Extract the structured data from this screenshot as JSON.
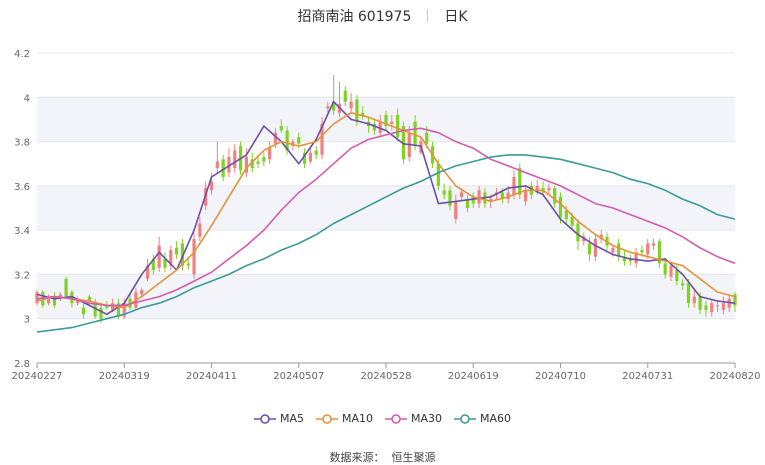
{
  "header": {
    "title": "招商南油 601975",
    "period": "日K"
  },
  "source": {
    "label": "数据来源：",
    "value": "恒生聚源"
  },
  "colors": {
    "up": "#f08080",
    "down": "#7ed321",
    "ma5": "#6c4fa8",
    "ma10": "#e8913a",
    "ma30": "#d45bb0",
    "ma60": "#3c9a9a",
    "band": "#f3f4f9",
    "grid": "#e6e6e6"
  },
  "chart_data": {
    "type": "candlestick",
    "ylim": [
      2.8,
      4.2
    ],
    "yticks": [
      2.8,
      3,
      3.2,
      3.4,
      3.6,
      3.8,
      4,
      4.2
    ],
    "xtick_labels": [
      "20240227",
      "20240319",
      "20240411",
      "20240507",
      "20240528",
      "20240619",
      "20240710",
      "20240731",
      "20240820"
    ],
    "xtick_index": [
      0,
      15,
      30,
      45,
      60,
      75,
      90,
      105,
      120
    ],
    "n_days": 121,
    "legend": [
      "MA5",
      "MA10",
      "MA30",
      "MA60"
    ],
    "ma_series": [
      {
        "name": "MA5",
        "color_key": "ma5",
        "x": [
          0,
          3,
          6,
          9,
          12,
          15,
          18,
          21,
          24,
          27,
          30,
          33,
          36,
          39,
          42,
          45,
          48,
          51,
          54,
          57,
          60,
          63,
          66,
          69,
          72,
          75,
          78,
          81,
          84,
          87,
          90,
          93,
          96,
          99,
          102,
          105,
          108,
          111,
          114,
          117,
          120
        ],
        "y": [
          3.11,
          3.09,
          3.1,
          3.06,
          3.02,
          3.07,
          3.2,
          3.3,
          3.22,
          3.4,
          3.64,
          3.69,
          3.74,
          3.87,
          3.8,
          3.7,
          3.81,
          3.98,
          3.9,
          3.88,
          3.85,
          3.79,
          3.78,
          3.52,
          3.53,
          3.54,
          3.55,
          3.59,
          3.6,
          3.56,
          3.45,
          3.38,
          3.33,
          3.29,
          3.27,
          3.26,
          3.27,
          3.2,
          3.1,
          3.08,
          3.07
        ]
      },
      {
        "name": "MA10",
        "color_key": "ma10",
        "x": [
          0,
          3,
          6,
          9,
          12,
          15,
          18,
          21,
          24,
          27,
          30,
          33,
          36,
          39,
          42,
          45,
          48,
          51,
          54,
          57,
          60,
          63,
          66,
          69,
          72,
          75,
          78,
          81,
          84,
          87,
          90,
          93,
          96,
          99,
          102,
          105,
          108,
          111,
          114,
          117,
          120
        ],
        "y": [
          3.08,
          3.1,
          3.09,
          3.08,
          3.06,
          3.05,
          3.1,
          3.16,
          3.22,
          3.3,
          3.42,
          3.55,
          3.68,
          3.76,
          3.8,
          3.78,
          3.8,
          3.88,
          3.93,
          3.91,
          3.88,
          3.85,
          3.82,
          3.7,
          3.6,
          3.55,
          3.53,
          3.55,
          3.58,
          3.58,
          3.52,
          3.44,
          3.38,
          3.33,
          3.3,
          3.28,
          3.26,
          3.24,
          3.18,
          3.12,
          3.1
        ]
      },
      {
        "name": "MA30",
        "color_key": "ma30",
        "x": [
          0,
          3,
          6,
          9,
          12,
          15,
          18,
          21,
          24,
          27,
          30,
          33,
          36,
          39,
          42,
          45,
          48,
          51,
          54,
          57,
          60,
          63,
          66,
          69,
          72,
          75,
          78,
          81,
          84,
          87,
          90,
          93,
          96,
          99,
          102,
          105,
          108,
          111,
          114,
          117,
          120
        ],
        "y": [
          3.09,
          3.1,
          3.09,
          3.07,
          3.06,
          3.06,
          3.08,
          3.1,
          3.13,
          3.17,
          3.21,
          3.27,
          3.33,
          3.4,
          3.49,
          3.57,
          3.63,
          3.7,
          3.77,
          3.81,
          3.83,
          3.85,
          3.86,
          3.84,
          3.8,
          3.77,
          3.72,
          3.69,
          3.66,
          3.63,
          3.6,
          3.56,
          3.52,
          3.5,
          3.47,
          3.44,
          3.41,
          3.37,
          3.32,
          3.28,
          3.25
        ]
      },
      {
        "name": "MA60",
        "color_key": "ma60",
        "x": [
          0,
          3,
          6,
          9,
          12,
          15,
          18,
          21,
          24,
          27,
          30,
          33,
          36,
          39,
          42,
          45,
          48,
          51,
          54,
          57,
          60,
          63,
          66,
          69,
          72,
          75,
          78,
          81,
          84,
          87,
          90,
          93,
          96,
          99,
          102,
          105,
          108,
          111,
          114,
          117,
          120
        ],
        "y": [
          2.94,
          2.95,
          2.96,
          2.98,
          3.0,
          3.02,
          3.05,
          3.07,
          3.1,
          3.14,
          3.17,
          3.2,
          3.24,
          3.27,
          3.31,
          3.34,
          3.38,
          3.43,
          3.47,
          3.51,
          3.55,
          3.59,
          3.62,
          3.66,
          3.69,
          3.71,
          3.73,
          3.74,
          3.74,
          3.73,
          3.72,
          3.7,
          3.68,
          3.66,
          3.63,
          3.61,
          3.58,
          3.54,
          3.51,
          3.47,
          3.45
        ]
      }
    ],
    "candles": {
      "open": [
        3.07,
        3.12,
        3.07,
        3.1,
        3.09,
        3.18,
        3.12,
        3.07,
        3.05,
        3.1,
        3.07,
        3.05,
        3.06,
        3.04,
        3.07,
        3.01,
        3.09,
        3.05,
        3.11,
        3.18,
        3.27,
        3.23,
        3.27,
        3.24,
        3.32,
        3.34,
        3.25,
        3.2,
        3.37,
        3.51,
        3.58,
        3.68,
        3.72,
        3.66,
        3.68,
        3.78,
        3.66,
        3.72,
        3.71,
        3.73,
        3.72,
        3.79,
        3.87,
        3.85,
        3.78,
        3.82,
        3.75,
        3.71,
        3.76,
        3.74,
        3.95,
        3.98,
        3.93,
        4.03,
        3.95,
        3.99,
        3.93,
        3.89,
        3.88,
        3.84,
        3.92,
        3.88,
        3.92,
        3.87,
        3.73,
        3.89,
        3.75,
        3.84,
        3.78,
        3.7,
        3.58,
        3.58,
        3.45,
        3.55,
        3.54,
        3.55,
        3.52,
        3.57,
        3.53,
        3.56,
        3.57,
        3.54,
        3.56,
        3.68,
        3.53,
        3.6,
        3.58,
        3.59,
        3.58,
        3.59,
        3.55,
        3.49,
        3.46,
        3.43,
        3.35,
        3.34,
        3.28,
        3.36,
        3.37,
        3.3,
        3.34,
        3.28,
        3.27,
        3.25,
        3.31,
        3.29,
        3.33,
        3.35,
        3.25,
        3.19,
        3.22,
        3.16,
        3.16,
        3.07,
        3.1,
        3.06,
        3.03,
        3.06,
        3.04,
        3.05,
        3.11
      ],
      "close": [
        3.12,
        3.06,
        3.09,
        3.06,
        3.11,
        3.1,
        3.07,
        3.09,
        3.02,
        3.08,
        3.01,
        3.0,
        3.05,
        3.07,
        3.01,
        3.07,
        3.05,
        3.12,
        3.13,
        3.24,
        3.22,
        3.33,
        3.23,
        3.31,
        3.29,
        3.24,
        3.24,
        3.36,
        3.43,
        3.59,
        3.62,
        3.71,
        3.64,
        3.73,
        3.76,
        3.67,
        3.73,
        3.68,
        3.7,
        3.71,
        3.77,
        3.84,
        3.85,
        3.76,
        3.8,
        3.79,
        3.7,
        3.75,
        3.74,
        3.88,
        3.96,
        3.94,
        3.97,
        3.98,
        3.98,
        3.89,
        3.92,
        3.87,
        3.85,
        3.89,
        3.87,
        3.89,
        3.82,
        3.72,
        3.84,
        3.78,
        3.8,
        3.79,
        3.7,
        3.6,
        3.56,
        3.51,
        3.53,
        3.57,
        3.5,
        3.52,
        3.58,
        3.52,
        3.54,
        3.57,
        3.54,
        3.57,
        3.64,
        3.56,
        3.58,
        3.56,
        3.6,
        3.57,
        3.59,
        3.52,
        3.46,
        3.45,
        3.42,
        3.35,
        3.37,
        3.29,
        3.36,
        3.38,
        3.33,
        3.32,
        3.28,
        3.26,
        3.26,
        3.3,
        3.3,
        3.34,
        3.34,
        3.25,
        3.2,
        3.24,
        3.17,
        3.15,
        3.07,
        3.1,
        3.04,
        3.04,
        3.07,
        3.06,
        3.07,
        3.09,
        3.06
      ],
      "high": [
        3.13,
        3.13,
        3.11,
        3.12,
        3.12,
        3.19,
        3.13,
        3.1,
        3.07,
        3.11,
        3.09,
        3.06,
        3.08,
        3.09,
        3.09,
        3.09,
        3.11,
        3.14,
        3.14,
        3.27,
        3.29,
        3.37,
        3.3,
        3.33,
        3.35,
        3.36,
        3.28,
        3.39,
        3.46,
        3.62,
        3.66,
        3.8,
        3.74,
        3.77,
        3.79,
        3.8,
        3.77,
        3.75,
        3.74,
        3.75,
        3.8,
        3.86,
        3.9,
        3.87,
        3.81,
        3.84,
        3.77,
        3.78,
        3.78,
        3.91,
        3.98,
        4.1,
        4.07,
        4.05,
        4.02,
        4.01,
        3.96,
        3.91,
        3.9,
        3.92,
        3.94,
        3.92,
        3.95,
        3.89,
        3.87,
        3.92,
        3.82,
        3.87,
        3.8,
        3.72,
        3.61,
        3.6,
        3.56,
        3.59,
        3.56,
        3.57,
        3.6,
        3.59,
        3.56,
        3.59,
        3.59,
        3.6,
        3.67,
        3.7,
        3.6,
        3.62,
        3.63,
        3.62,
        3.61,
        3.6,
        3.57,
        3.51,
        3.48,
        3.45,
        3.39,
        3.37,
        3.38,
        3.4,
        3.39,
        3.33,
        3.36,
        3.31,
        3.29,
        3.32,
        3.33,
        3.36,
        3.36,
        3.36,
        3.27,
        3.26,
        3.25,
        3.18,
        3.18,
        3.13,
        3.12,
        3.08,
        3.09,
        3.08,
        3.1,
        3.11,
        3.12
      ],
      "low": [
        3.06,
        3.05,
        3.06,
        3.05,
        3.08,
        3.09,
        3.05,
        3.06,
        3.0,
        3.06,
        3.0,
        2.98,
        3.04,
        3.03,
        3.0,
        3.0,
        3.04,
        3.04,
        3.1,
        3.17,
        3.2,
        3.21,
        3.21,
        3.22,
        3.27,
        3.22,
        3.22,
        3.18,
        3.35,
        3.49,
        3.56,
        3.66,
        3.62,
        3.64,
        3.66,
        3.65,
        3.64,
        3.66,
        3.68,
        3.69,
        3.7,
        3.77,
        3.84,
        3.74,
        3.76,
        3.77,
        3.68,
        3.7,
        3.72,
        3.72,
        3.93,
        3.92,
        3.91,
        3.96,
        3.93,
        3.87,
        3.9,
        3.84,
        3.83,
        3.82,
        3.85,
        3.85,
        3.8,
        3.7,
        3.71,
        3.76,
        3.74,
        3.77,
        3.68,
        3.58,
        3.54,
        3.49,
        3.43,
        3.53,
        3.48,
        3.5,
        3.5,
        3.5,
        3.5,
        3.54,
        3.52,
        3.52,
        3.54,
        3.54,
        3.51,
        3.54,
        3.56,
        3.55,
        3.56,
        3.5,
        3.43,
        3.43,
        3.4,
        3.31,
        3.33,
        3.26,
        3.26,
        3.34,
        3.31,
        3.28,
        3.26,
        3.24,
        3.24,
        3.23,
        3.28,
        3.27,
        3.31,
        3.23,
        3.18,
        3.17,
        3.15,
        3.13,
        3.05,
        3.05,
        3.02,
        3.01,
        3.01,
        3.03,
        3.02,
        3.03,
        3.03
      ]
    }
  }
}
